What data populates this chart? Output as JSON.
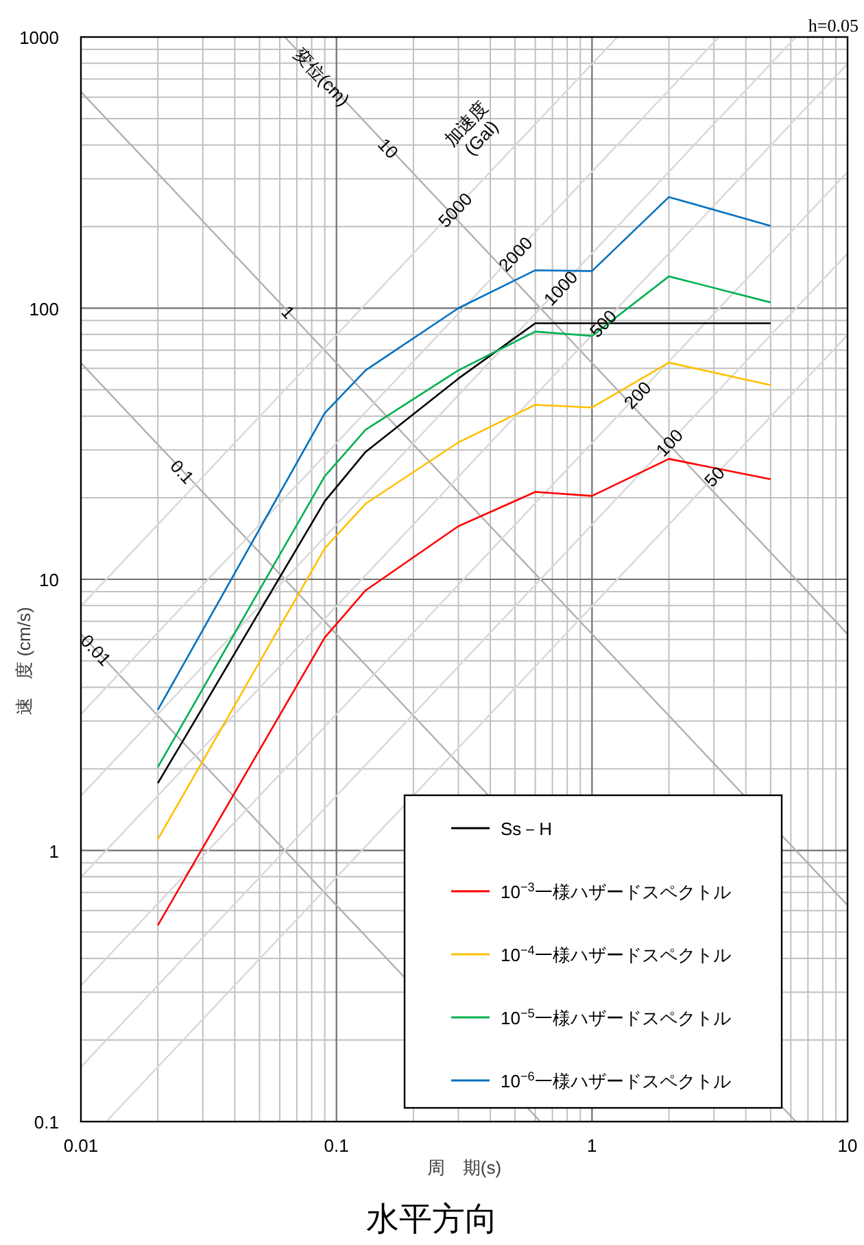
{
  "chart_data": {
    "type": "line",
    "title": "水平方向",
    "xlabel": "周　期(s)",
    "ylabel": "速　度 (cm/s)",
    "log": "xy",
    "grid": true,
    "legend": "bottom right",
    "line_style": "solid",
    "marker": "none",
    "xlim": [
      0.01,
      10
    ],
    "ylim": [
      0.1,
      1000
    ],
    "xticks": [
      0.01,
      0.1,
      1,
      10
    ],
    "yticks": [
      0.1,
      1,
      10,
      100,
      1000
    ],
    "x": [
      0.02,
      0.09,
      0.13,
      0.3,
      0.6,
      1.0,
      2.0,
      5.0
    ],
    "series": [
      {
        "name": "Ss－H",
        "color": "#000000",
        "values": [
          1.77,
          19.4,
          29.5,
          55,
          88,
          88,
          88,
          88
        ]
      },
      {
        "name": "10$^{−3}$一様ハザードスペクトル",
        "color": "#ff0000",
        "values": [
          0.53,
          6.1,
          9.1,
          15.7,
          21,
          20.3,
          27.8,
          23.4
        ]
      },
      {
        "name": "10$^{−4}$一様ハザードスペクトル",
        "color": "#ffc000",
        "values": [
          1.1,
          13,
          19,
          32,
          44,
          43,
          63,
          52
        ]
      },
      {
        "name": "10$^{−5}$一様ハザードスペクトル",
        "color": "#00b050",
        "values": [
          2.03,
          24,
          35.6,
          59,
          82,
          79,
          131,
          105
        ]
      },
      {
        "name": "10$^{−6}$一様ハザードスペクトル",
        "color": "#0070c0",
        "values": [
          3.3,
          41,
          59,
          100,
          138,
          137,
          257,
          201
        ]
      },
      {
        "color": "#b0b0b0",
        "x": [
          0.01,
          0.628
        ],
        "values": [
          6.28,
          0.1
        ]
      },
      {
        "color": "#b0b0b0",
        "x": [
          0.01,
          6.28
        ],
        "values": [
          62.8,
          0.1
        ]
      },
      {
        "color": "#b0b0b0",
        "x": [
          0.01,
          10
        ],
        "values": [
          628,
          0.628
        ]
      },
      {
        "color": "#b0b0b0",
        "x": [
          0.0628,
          10
        ],
        "values": [
          1000,
          6.28
        ]
      },
      {
        "color": "#d8d8d8",
        "x": [
          0.01257,
          10
        ],
        "values": [
          0.1,
          79.6
        ]
      },
      {
        "color": "#d8d8d8",
        "x": [
          0.01,
          10
        ],
        "values": [
          0.159,
          159
        ]
      },
      {
        "color": "#d8d8d8",
        "x": [
          0.01,
          10
        ],
        "values": [
          0.318,
          318
        ]
      },
      {
        "color": "#d8d8d8",
        "x": [
          0.01,
          10
        ],
        "values": [
          0.796,
          796
        ]
      },
      {
        "color": "#d8d8d8",
        "x": [
          0.01,
          6.28
        ],
        "values": [
          1.59,
          1000
        ]
      },
      {
        "color": "#d8d8d8",
        "x": [
          0.01,
          3.14
        ],
        "values": [
          3.18,
          1000
        ]
      },
      {
        "color": "#d8d8d8",
        "x": [
          0.01,
          1.257
        ],
        "values": [
          7.96,
          1000
        ]
      }
    ],
    "annotations": [
      "h=0.05",
      {
        "text": "0.01",
        "x": 0.0115,
        "y": 5.5
      },
      {
        "text": "0.1",
        "x": 0.025,
        "y": 25
      },
      {
        "text": "1",
        "x": 0.065,
        "y": 97
      },
      {
        "text": "10",
        "x": 0.16,
        "y": 390
      },
      {
        "text": "変位(cm)",
        "x": 0.088,
        "y": 715
      },
      {
        "text": "50",
        "x": 3.0,
        "y": 24
      },
      {
        "text": "100",
        "x": 2.0,
        "y": 32
      },
      {
        "text": "200",
        "x": 1.5,
        "y": 48
      },
      {
        "text": "500",
        "x": 1.1,
        "y": 88
      },
      {
        "text": "1000",
        "x": 0.75,
        "y": 119
      },
      {
        "text": "2000",
        "x": 0.5,
        "y": 159
      },
      {
        "text": "5000",
        "x": 0.29,
        "y": 231
      },
      "加速度\n(Gal)"
    ]
  }
}
